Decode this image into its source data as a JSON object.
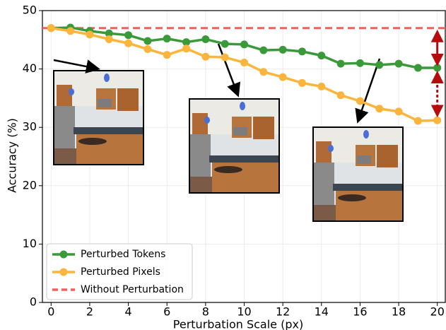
{
  "chart_data": {
    "type": "line",
    "x_label": "Perturbation Scale (px)",
    "y_label": "Accuracy (%)",
    "x": [
      0,
      1,
      2,
      3,
      4,
      5,
      6,
      7,
      8,
      9,
      10,
      11,
      12,
      13,
      14,
      15,
      16,
      17,
      18,
      19,
      20
    ],
    "series": [
      {
        "name": "Perturbed Tokens",
        "color": "#3a9a3a",
        "values": [
          47.0,
          47.1,
          46.5,
          46.1,
          45.8,
          44.8,
          45.2,
          44.6,
          45.1,
          44.3,
          44.2,
          43.2,
          43.3,
          43.0,
          42.3,
          40.9,
          41.0,
          40.7,
          40.9,
          40.2,
          40.2
        ]
      },
      {
        "name": "Perturbed Pixels",
        "color": "#fbb53c",
        "values": [
          47.0,
          46.5,
          45.9,
          45.1,
          44.4,
          43.4,
          42.4,
          43.5,
          42.1,
          42.0,
          41.1,
          39.5,
          38.6,
          37.6,
          37.0,
          35.5,
          34.5,
          33.2,
          32.7,
          31.1,
          31.2
        ]
      }
    ],
    "reference": {
      "name": "Without Perturbation",
      "color": "#f0605d",
      "value": 47.0
    },
    "xlim": [
      -0.45,
      20.45
    ],
    "ylim": [
      0,
      50
    ],
    "xticks": [
      0,
      2,
      4,
      6,
      8,
      10,
      12,
      14,
      16,
      18,
      20
    ],
    "yticks": [
      0,
      10,
      20,
      30,
      40,
      50
    ],
    "grid": true,
    "legend": "lower left"
  }
}
